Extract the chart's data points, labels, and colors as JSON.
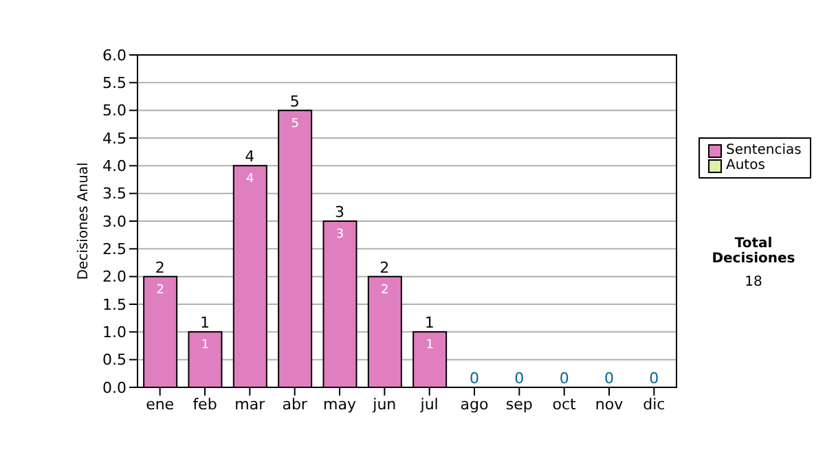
{
  "chart_data": {
    "type": "bar",
    "stacked": true,
    "ylabel": "Decisiones Anual",
    "categories": [
      "ene",
      "feb",
      "mar",
      "abr",
      "may",
      "jun",
      "jul",
      "ago",
      "sep",
      "oct",
      "nov",
      "dic"
    ],
    "series": [
      {
        "name": "Sentencias",
        "color": "#e07fc0",
        "values": [
          2,
          1,
          4,
          5,
          3,
          2,
          1,
          0,
          0,
          0,
          0,
          0
        ],
        "value_labels": [
          "2",
          "1",
          "4",
          "5",
          "3",
          "2",
          "1",
          null,
          null,
          null,
          null,
          null
        ]
      },
      {
        "name": "Autos",
        "color": "#ddf0a8",
        "values": [
          0,
          0,
          0,
          0,
          0,
          0,
          0,
          0,
          0,
          0,
          0,
          0
        ]
      }
    ],
    "totals": [
      "2",
      "1",
      "4",
      "5",
      "3",
      "2",
      "1",
      "0",
      "0",
      "0",
      "0",
      "0"
    ],
    "ylim": [
      0,
      6
    ],
    "yticks": [
      {
        "value": 0,
        "label": "0.0"
      },
      {
        "value": 0.5,
        "label": "0.5"
      },
      {
        "value": 1,
        "label": "1.0"
      },
      {
        "value": 1.5,
        "label": "1.5"
      },
      {
        "value": 2,
        "label": "2.0"
      },
      {
        "value": 2.5,
        "label": "2.5"
      },
      {
        "value": 3,
        "label": "3.0"
      },
      {
        "value": 3.5,
        "label": "3.5"
      },
      {
        "value": 4,
        "label": "4.0"
      },
      {
        "value": 4.5,
        "label": "4.5"
      },
      {
        "value": 5,
        "label": "5.0"
      },
      {
        "value": 5.5,
        "label": "5.5"
      },
      {
        "value": 6,
        "label": "6.0"
      }
    ],
    "grid": "y",
    "legend": "right",
    "annotations": [
      "Total Decisiones",
      "18"
    ]
  }
}
